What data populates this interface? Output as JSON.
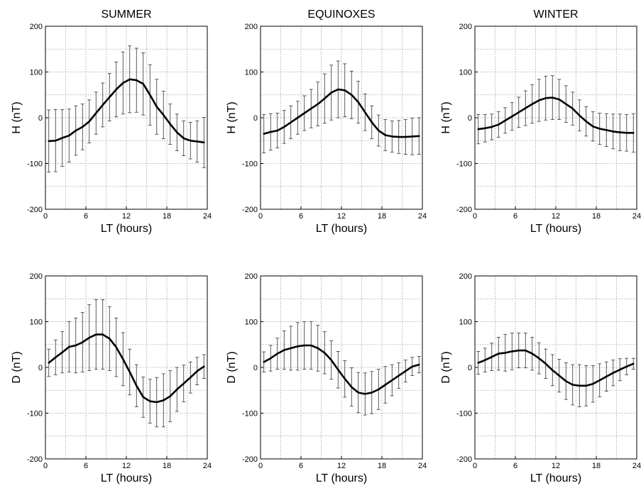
{
  "chart_data": [
    {
      "type": "line",
      "title": "SUMMER",
      "xlabel": "LT (hours)",
      "ylabel": "H (nT)",
      "xlim": [
        0,
        24
      ],
      "ylim": [
        -200,
        200
      ],
      "xticks": [
        "0",
        "6",
        "12",
        "18",
        "24"
      ],
      "yticks": [
        "200",
        "100",
        "0",
        "-100",
        "-200"
      ],
      "grid": true,
      "x": [
        0.5,
        1.5,
        2.5,
        3.5,
        4.5,
        5.5,
        6.5,
        7.5,
        8.5,
        9.5,
        10.5,
        11.5,
        12.5,
        13.5,
        14.5,
        15.5,
        16.5,
        17.5,
        18.5,
        19.5,
        20.5,
        21.5,
        22.5,
        23.5
      ],
      "values": [
        -51,
        -50,
        -44,
        -39,
        -28,
        -20,
        -8,
        10,
        28,
        45,
        62,
        76,
        84,
        82,
        74,
        50,
        24,
        6,
        -14,
        -32,
        -45,
        -50,
        -52,
        -54
      ],
      "error": [
        68,
        68,
        62,
        58,
        54,
        50,
        47,
        46,
        48,
        52,
        60,
        68,
        73,
        70,
        68,
        66,
        60,
        52,
        44,
        40,
        38,
        40,
        45,
        55
      ]
    },
    {
      "type": "line",
      "title": "EQUINOXES",
      "xlabel": "LT (hours)",
      "ylabel": "H (nT)",
      "xlim": [
        0,
        24
      ],
      "ylim": [
        -200,
        200
      ],
      "xticks": [
        "0",
        "6",
        "12",
        "18",
        "24"
      ],
      "yticks": [
        "200",
        "100",
        "0",
        "-100",
        "-200"
      ],
      "grid": true,
      "x": [
        0.5,
        1.5,
        2.5,
        3.5,
        4.5,
        5.5,
        6.5,
        7.5,
        8.5,
        9.5,
        10.5,
        11.5,
        12.5,
        13.5,
        14.5,
        15.5,
        16.5,
        17.5,
        18.5,
        19.5,
        20.5,
        21.5,
        22.5,
        23.5
      ],
      "values": [
        -35,
        -31,
        -28,
        -20,
        -10,
        0,
        10,
        20,
        30,
        42,
        55,
        62,
        60,
        50,
        34,
        12,
        -10,
        -28,
        -38,
        -41,
        -42,
        -42,
        -41,
        -40
      ],
      "error": [
        42,
        40,
        38,
        36,
        36,
        36,
        38,
        42,
        48,
        54,
        60,
        62,
        58,
        52,
        46,
        40,
        36,
        34,
        34,
        34,
        36,
        38,
        40,
        40
      ]
    },
    {
      "type": "line",
      "title": "WINTER",
      "xlabel": "LT (hours)",
      "ylabel": "H (nT)",
      "xlim": [
        0,
        24
      ],
      "ylim": [
        -200,
        200
      ],
      "xticks": [
        "0",
        "6",
        "12",
        "18",
        "24"
      ],
      "yticks": [
        "200",
        "100",
        "0",
        "-100",
        "-200"
      ],
      "grid": true,
      "x": [
        0.5,
        1.5,
        2.5,
        3.5,
        4.5,
        5.5,
        6.5,
        7.5,
        8.5,
        9.5,
        10.5,
        11.5,
        12.5,
        13.5,
        14.5,
        15.5,
        16.5,
        17.5,
        18.5,
        19.5,
        20.5,
        21.5,
        22.5,
        23.5
      ],
      "values": [
        -25,
        -23,
        -20,
        -15,
        -6,
        3,
        12,
        21,
        30,
        38,
        43,
        44,
        40,
        30,
        20,
        5,
        -8,
        -19,
        -24,
        -27,
        -30,
        -32,
        -33,
        -33
      ],
      "error": [
        32,
        30,
        28,
        28,
        28,
        30,
        33,
        38,
        42,
        46,
        48,
        48,
        44,
        40,
        36,
        34,
        32,
        32,
        34,
        36,
        38,
        40,
        40,
        42
      ]
    },
    {
      "type": "line",
      "title": "",
      "xlabel": "LT (hours)",
      "ylabel": "D (nT)",
      "xlim": [
        0,
        24
      ],
      "ylim": [
        -200,
        200
      ],
      "xticks": [
        "0",
        "6",
        "12",
        "18",
        "24"
      ],
      "yticks": [
        "200",
        "100",
        "0",
        "-100",
        "-200"
      ],
      "grid": true,
      "x": [
        0.5,
        1.5,
        2.5,
        3.5,
        4.5,
        5.5,
        6.5,
        7.5,
        8.5,
        9.5,
        10.5,
        11.5,
        12.5,
        13.5,
        14.5,
        15.5,
        16.5,
        17.5,
        18.5,
        19.5,
        20.5,
        21.5,
        22.5,
        23.5
      ],
      "values": [
        10,
        22,
        33,
        45,
        48,
        55,
        65,
        72,
        72,
        63,
        44,
        18,
        -10,
        -40,
        -65,
        -74,
        -76,
        -72,
        -63,
        -48,
        -35,
        -22,
        -8,
        2
      ],
      "error": [
        30,
        38,
        45,
        55,
        60,
        65,
        72,
        76,
        76,
        70,
        64,
        58,
        50,
        46,
        44,
        48,
        54,
        58,
        56,
        48,
        40,
        34,
        30,
        26
      ]
    },
    {
      "type": "line",
      "title": "",
      "xlabel": "LT (hours)",
      "ylabel": "D (nT)",
      "xlim": [
        0,
        24
      ],
      "ylim": [
        -200,
        200
      ],
      "xticks": [
        "0",
        "6",
        "12",
        "18",
        "24"
      ],
      "yticks": [
        "200",
        "100",
        "0",
        "-100",
        "-200"
      ],
      "grid": true,
      "x": [
        0.5,
        1.5,
        2.5,
        3.5,
        4.5,
        5.5,
        6.5,
        7.5,
        8.5,
        9.5,
        10.5,
        11.5,
        12.5,
        13.5,
        14.5,
        15.5,
        16.5,
        17.5,
        18.5,
        19.5,
        20.5,
        21.5,
        22.5,
        23.5
      ],
      "values": [
        12,
        20,
        30,
        38,
        42,
        46,
        48,
        48,
        42,
        32,
        16,
        -5,
        -25,
        -43,
        -55,
        -58,
        -55,
        -48,
        -38,
        -28,
        -18,
        -8,
        2,
        6
      ],
      "error": [
        22,
        28,
        34,
        42,
        48,
        52,
        52,
        52,
        50,
        46,
        42,
        40,
        40,
        42,
        44,
        46,
        46,
        44,
        40,
        34,
        28,
        24,
        20,
        18
      ]
    },
    {
      "type": "line",
      "title": "",
      "xlabel": "LT (hours)",
      "ylabel": "D (nT)",
      "xlim": [
        0,
        24
      ],
      "ylim": [
        -200,
        200
      ],
      "xticks": [
        "0",
        "6",
        "12",
        "18",
        "24"
      ],
      "yticks": [
        "200",
        "100",
        "0",
        "-100",
        "-200"
      ],
      "grid": true,
      "x": [
        0.5,
        1.5,
        2.5,
        3.5,
        4.5,
        5.5,
        6.5,
        7.5,
        8.5,
        9.5,
        10.5,
        11.5,
        12.5,
        13.5,
        14.5,
        15.5,
        16.5,
        17.5,
        18.5,
        19.5,
        20.5,
        21.5,
        22.5,
        23.5
      ],
      "values": [
        10,
        16,
        23,
        30,
        32,
        35,
        37,
        37,
        30,
        20,
        8,
        -6,
        -18,
        -30,
        -38,
        -40,
        -40,
        -36,
        -28,
        -20,
        -12,
        -5,
        2,
        8
      ],
      "error": [
        25,
        26,
        30,
        36,
        40,
        40,
        38,
        38,
        36,
        34,
        32,
        34,
        36,
        40,
        44,
        46,
        44,
        40,
        36,
        32,
        28,
        24,
        18,
        12
      ]
    }
  ],
  "style": {
    "line_color": "#000000",
    "error_color": "#333333",
    "grid_color": "#9a9a9a",
    "axis_color": "#000000"
  }
}
